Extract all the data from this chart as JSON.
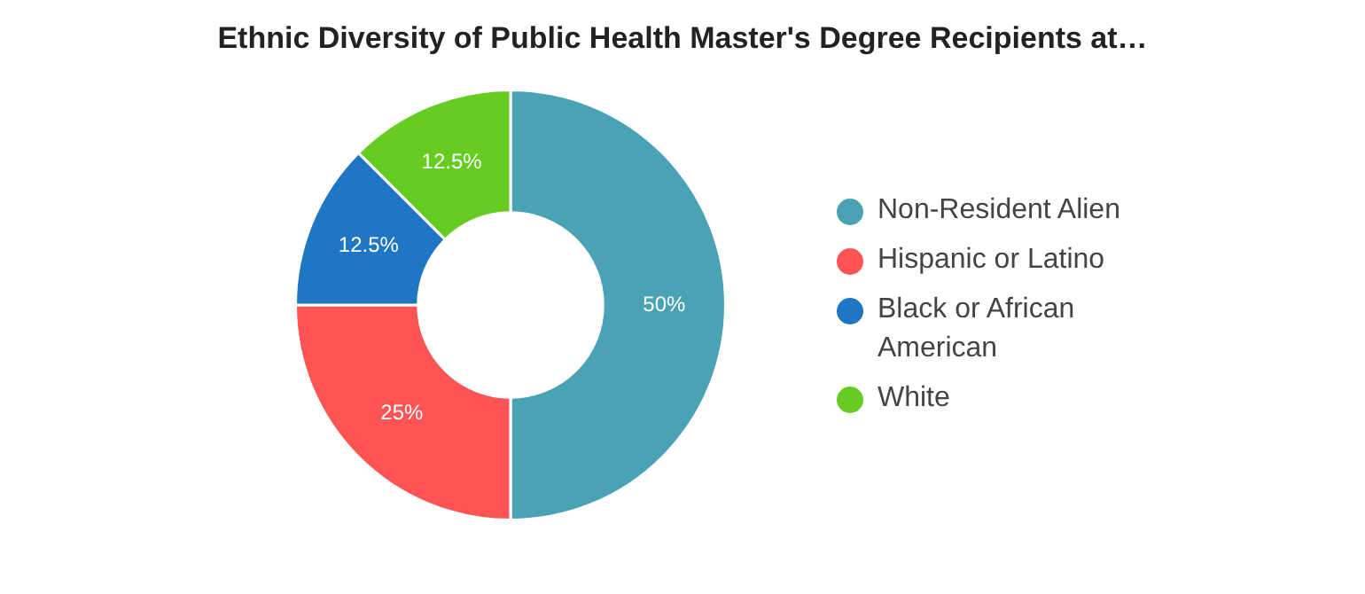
{
  "chart_data": {
    "type": "donut",
    "title": "Ethnic Diversity of Public Health Master's Degree Recipients at…",
    "categories": [
      "Non-Resident Alien",
      "Hispanic or Latino",
      "Black or African American",
      "White"
    ],
    "values": [
      50,
      25,
      12.5,
      12.5
    ],
    "colors": [
      "#4aa3b5",
      "#ff5454",
      "#1f77c4",
      "#66cc22"
    ],
    "value_labels": [
      "50%",
      "25%",
      "12.5%",
      "12.5%"
    ],
    "legend": "right"
  }
}
